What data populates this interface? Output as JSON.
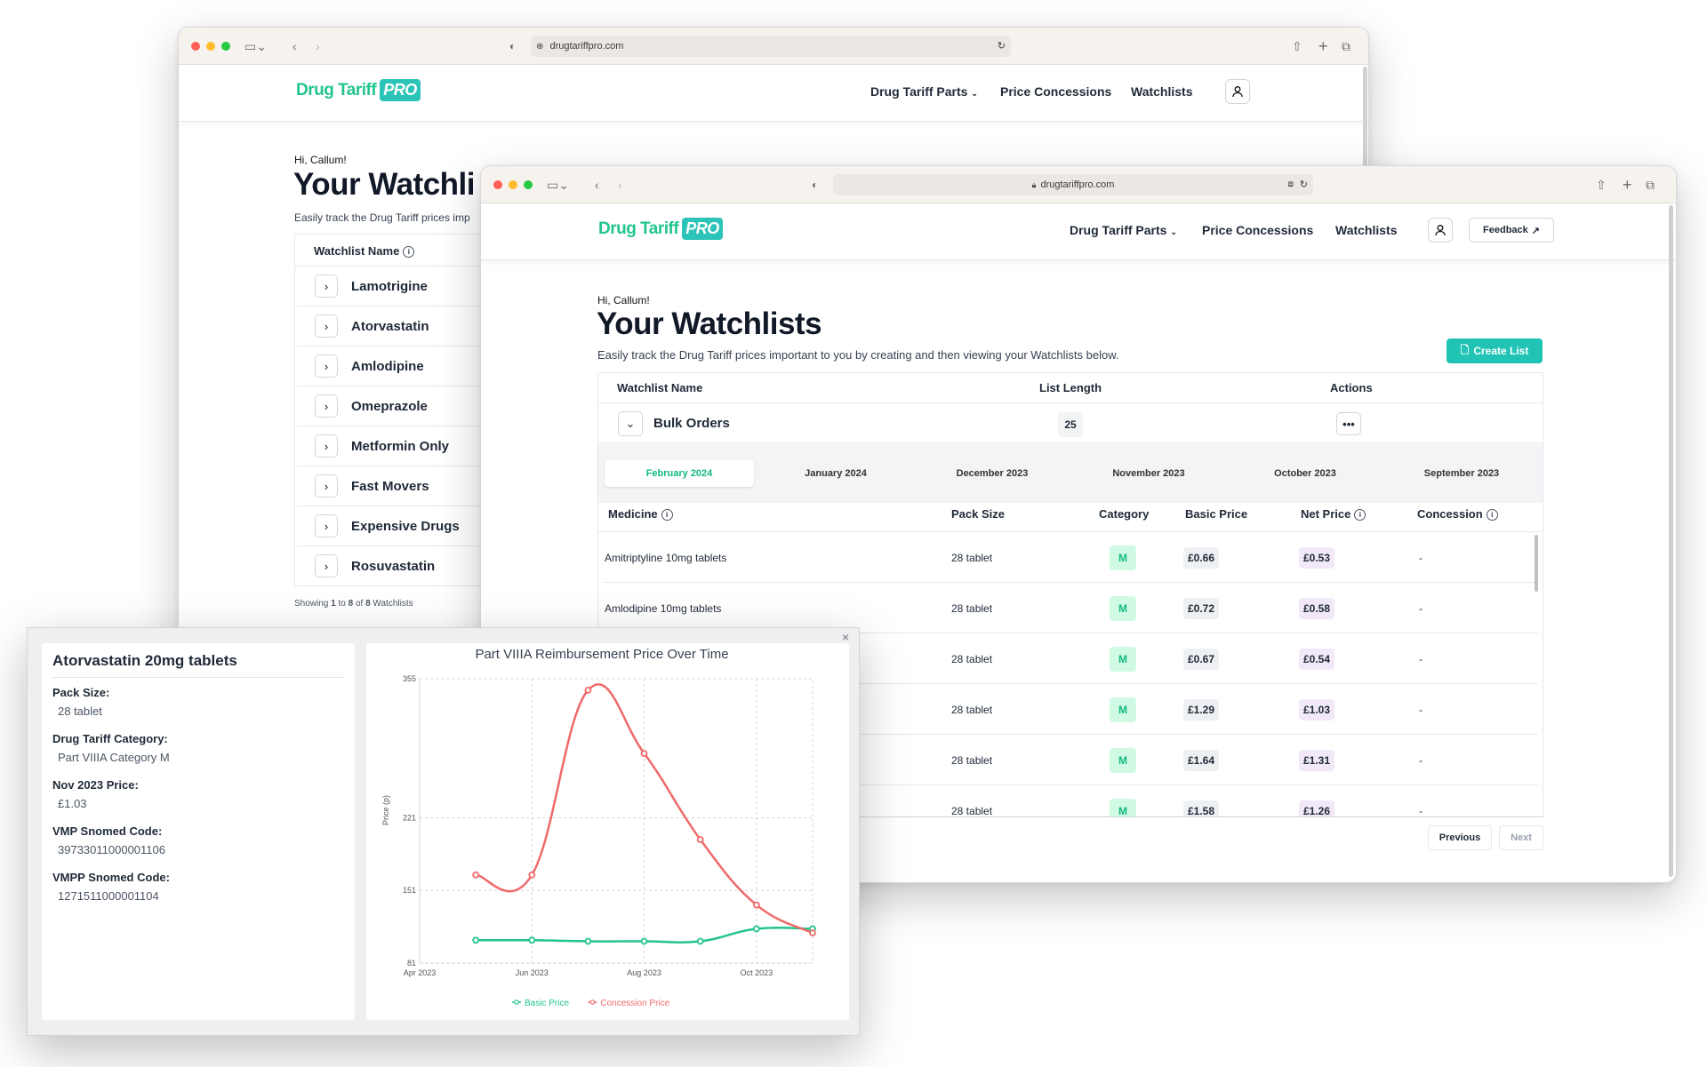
{
  "back_window": {
    "url": "drugtariffpro.com",
    "logo": {
      "main": "Drug Tariff",
      "badge": "PRO"
    },
    "nav": {
      "parts": "Drug Tariff Parts",
      "concessions": "Price Concessions",
      "watchlists": "Watchlists"
    },
    "greeting": "Hi, Callum!",
    "title": "Your Watchli",
    "subtitle": "Easily track the Drug Tariff prices imp",
    "table_header": "Watchlist Name",
    "watchlists": [
      {
        "name": "Lamotrigine"
      },
      {
        "name": "Atorvastatin"
      },
      {
        "name": "Amlodipine"
      },
      {
        "name": "Omeprazole"
      },
      {
        "name": "Metformin Only"
      },
      {
        "name": "Fast Movers"
      },
      {
        "name": "Expensive Drugs"
      },
      {
        "name": "Rosuvastatin"
      }
    ],
    "footer": {
      "prefix": "Showing ",
      "from": "1",
      "to_word": " to ",
      "to": "8",
      "of_word": " of ",
      "total": "8",
      "suffix": " Watchlists"
    }
  },
  "front_window": {
    "url": "drugtariffpro.com",
    "logo": {
      "main": "Drug Tariff",
      "badge": "PRO"
    },
    "nav": {
      "parts": "Drug Tariff Parts",
      "concessions": "Price Concessions",
      "watchlists": "Watchlists",
      "feedback": "Feedback"
    },
    "greeting": "Hi, Callum!",
    "title": "Your Watchlists",
    "subtitle": "Easily track the Drug Tariff prices important to you by creating and then viewing your Watchlists below.",
    "create_button": "Create List",
    "table_headers": {
      "name": "Watchlist Name",
      "length": "List Length",
      "actions": "Actions"
    },
    "watchlist": {
      "name": "Bulk Orders",
      "length": "25"
    },
    "months": [
      "February 2024",
      "January 2024",
      "December 2023",
      "November 2023",
      "October 2023",
      "September 2023"
    ],
    "medicine_headers": {
      "medicine": "Medicine",
      "pack": "Pack Size",
      "category": "Category",
      "basic": "Basic Price",
      "net": "Net Price",
      "concession": "Concession"
    },
    "medicines": [
      {
        "name": "Amitriptyline 10mg tablets",
        "pack": "28 tablet",
        "category": "M",
        "basic": "£0.66",
        "net": "£0.53",
        "concession": "-"
      },
      {
        "name": "Amlodipine 10mg tablets",
        "pack": "28 tablet",
        "category": "M",
        "basic": "£0.72",
        "net": "£0.58",
        "concession": "-"
      },
      {
        "name": "",
        "pack": "28 tablet",
        "category": "M",
        "basic": "£0.67",
        "net": "£0.54",
        "concession": "-"
      },
      {
        "name": "",
        "pack": "28 tablet",
        "category": "M",
        "basic": "£1.29",
        "net": "£1.03",
        "concession": "-"
      },
      {
        "name": "",
        "pack": "28 tablet",
        "category": "M",
        "basic": "£1.64",
        "net": "£1.31",
        "concession": "-"
      },
      {
        "name": "",
        "pack": "28 tablet",
        "category": "M",
        "basic": "£1.58",
        "net": "£1.26",
        "concession": "-"
      }
    ],
    "pagination": {
      "previous": "Previous",
      "next": "Next"
    }
  },
  "modal": {
    "close": "×",
    "title": "Atorvastatin 20mg tablets",
    "fields": [
      {
        "label": "Pack Size:",
        "value": "28 tablet"
      },
      {
        "label": "Drug Tariff Category:",
        "value": "Part VIIIA Category M"
      },
      {
        "label": "Nov 2023 Price:",
        "value": "£1.03"
      },
      {
        "label": "VMP Snomed Code:",
        "value": "39733011000001106"
      },
      {
        "label": "VMPP Snomed Code:",
        "value": "1271511000001104"
      }
    ]
  },
  "chart_data": {
    "type": "line",
    "title": "Part VIIIA Reimbursement Price Over Time",
    "xlabel": "",
    "ylabel": "Price (p)",
    "x_tick_labels": [
      "Apr 2023",
      "Jun 2023",
      "Aug 2023",
      "Oct 2023"
    ],
    "y_tick_labels": [
      "81",
      "151",
      "221",
      "355"
    ],
    "y_ticks": [
      81,
      151,
      221,
      355
    ],
    "ylim": [
      81,
      355
    ],
    "x": [
      "Apr 2023",
      "May 2023",
      "Jun 2023",
      "Jul 2023",
      "Aug 2023",
      "Sep 2023",
      "Oct 2023",
      "Nov 2023"
    ],
    "series": [
      {
        "name": "Basic Price",
        "color": "#22c58b",
        "values": [
          null,
          103,
          103,
          102,
          102,
          102,
          114,
          114
        ]
      },
      {
        "name": "Concession Price",
        "color": "#f06a6a",
        "values": [
          null,
          166,
          166,
          344,
          283,
          200,
          137,
          110
        ]
      }
    ],
    "grid": true,
    "legend": "bottom"
  },
  "colors": {
    "brand": "#22c58b",
    "accent": "#2cc4b8",
    "create_button": "#20c3b4"
  }
}
